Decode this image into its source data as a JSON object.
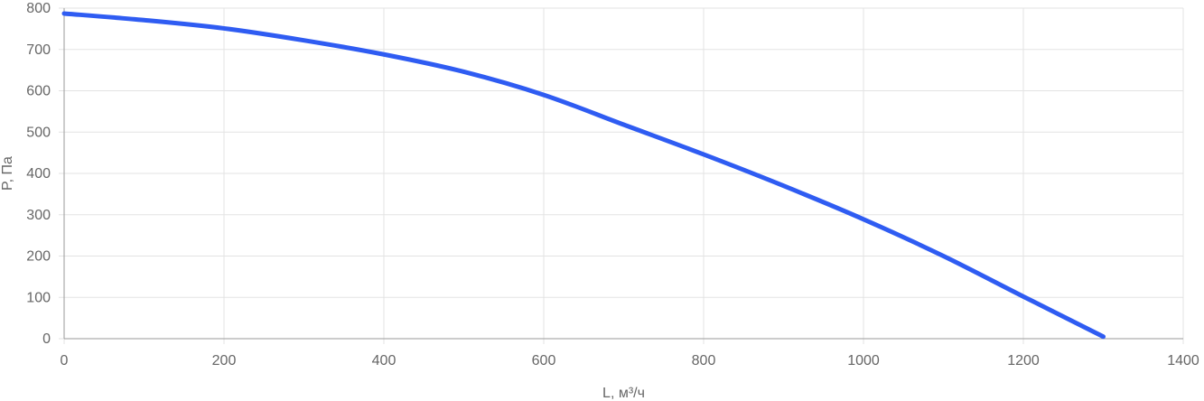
{
  "chart_data": {
    "type": "line",
    "xlabel": "L, м³/ч",
    "ylabel": "P, Па",
    "xlim": [
      0,
      1400
    ],
    "ylim": [
      0,
      800
    ],
    "x_ticks": [
      "0",
      "200",
      "400",
      "600",
      "800",
      "1000",
      "1200",
      "1400"
    ],
    "y_ticks": [
      "0",
      "100",
      "200",
      "300",
      "400",
      "500",
      "600",
      "700",
      "800"
    ],
    "grid": true,
    "series": [
      {
        "color": "#2f5cf2",
        "x": [
          0,
          100,
          200,
          300,
          400,
          500,
          600,
          700,
          800,
          900,
          1000,
          1100,
          1200,
          1300
        ],
        "y": [
          787,
          771,
          751,
          722,
          688,
          646,
          590,
          518,
          446,
          370,
          289,
          200,
          102,
          5
        ]
      }
    ]
  }
}
